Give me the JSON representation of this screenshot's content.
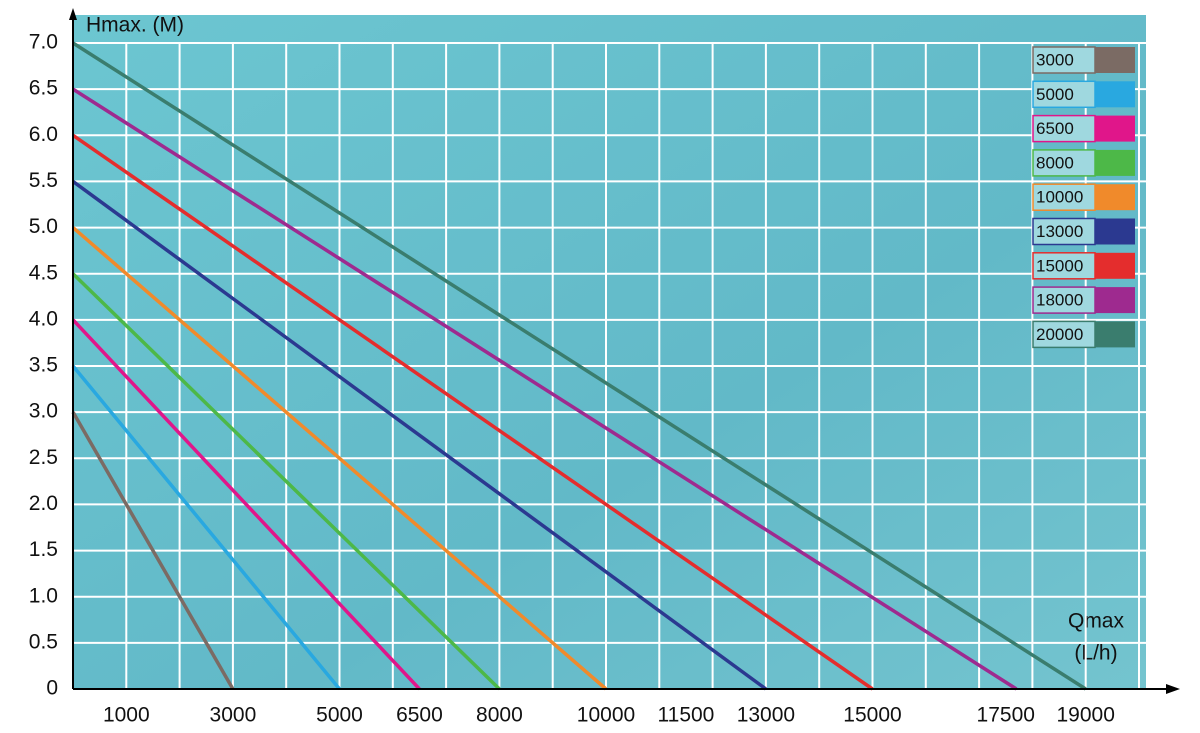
{
  "chart_data": {
    "type": "line",
    "ylabel": "Hmax. (M)",
    "xlabel": [
      "Qmax",
      "(L/h)"
    ],
    "xlim": [
      0,
      20000
    ],
    "ylim": [
      0,
      7
    ],
    "xticks": [
      1000,
      3000,
      5000,
      6500,
      8000,
      10000,
      11500,
      13000,
      15000,
      17500,
      19000
    ],
    "yticks": [
      0,
      0.5,
      {
        "value": 1,
        "label": "1.0"
      },
      1.5,
      {
        "value": 2,
        "label": "2.0"
      },
      2.5,
      {
        "value": 3,
        "label": "3.0"
      },
      3.5,
      {
        "value": 4,
        "label": "4.0"
      },
      4.5,
      {
        "value": 5,
        "label": "5.0"
      },
      5.5,
      {
        "value": 6,
        "label": "6.0"
      },
      6.5,
      {
        "value": 7,
        "label": "7.0"
      }
    ],
    "xgrid": [
      1000,
      2000,
      3000,
      4000,
      5000,
      6000,
      7000,
      8000,
      9000,
      10000,
      11000,
      12000,
      13000,
      14000,
      15000,
      16000,
      17000,
      18000,
      19000,
      20000
    ],
    "grid": true,
    "legend": "top-right",
    "series": [
      {
        "name": "3000",
        "color": "#7b6b64",
        "x": [
          0,
          3000
        ],
        "values": [
          3.0,
          0
        ]
      },
      {
        "name": "5000",
        "color": "#29a8e0",
        "x": [
          0,
          5000
        ],
        "values": [
          3.5,
          0
        ]
      },
      {
        "name": "6500",
        "color": "#e0168a",
        "x": [
          0,
          6500
        ],
        "values": [
          4.0,
          0
        ]
      },
      {
        "name": "8000",
        "color": "#4db848",
        "x": [
          0,
          8000
        ],
        "values": [
          4.5,
          0
        ]
      },
      {
        "name": "10000",
        "color": "#f08a2b",
        "x": [
          0,
          10000
        ],
        "values": [
          5.0,
          0
        ]
      },
      {
        "name": "13000",
        "color": "#2b3990",
        "x": [
          0,
          13000
        ],
        "values": [
          5.5,
          0
        ]
      },
      {
        "name": "15000",
        "color": "#e42d2d",
        "x": [
          0,
          15000
        ],
        "values": [
          6.0,
          0
        ]
      },
      {
        "name": "18000",
        "color": "#9e2a8f",
        "x": [
          0,
          17700
        ],
        "values": [
          6.5,
          0
        ]
      },
      {
        "name": "20000",
        "color": "#3a7d6e",
        "x": [
          0,
          19000
        ],
        "values": [
          7.0,
          0
        ]
      }
    ]
  }
}
